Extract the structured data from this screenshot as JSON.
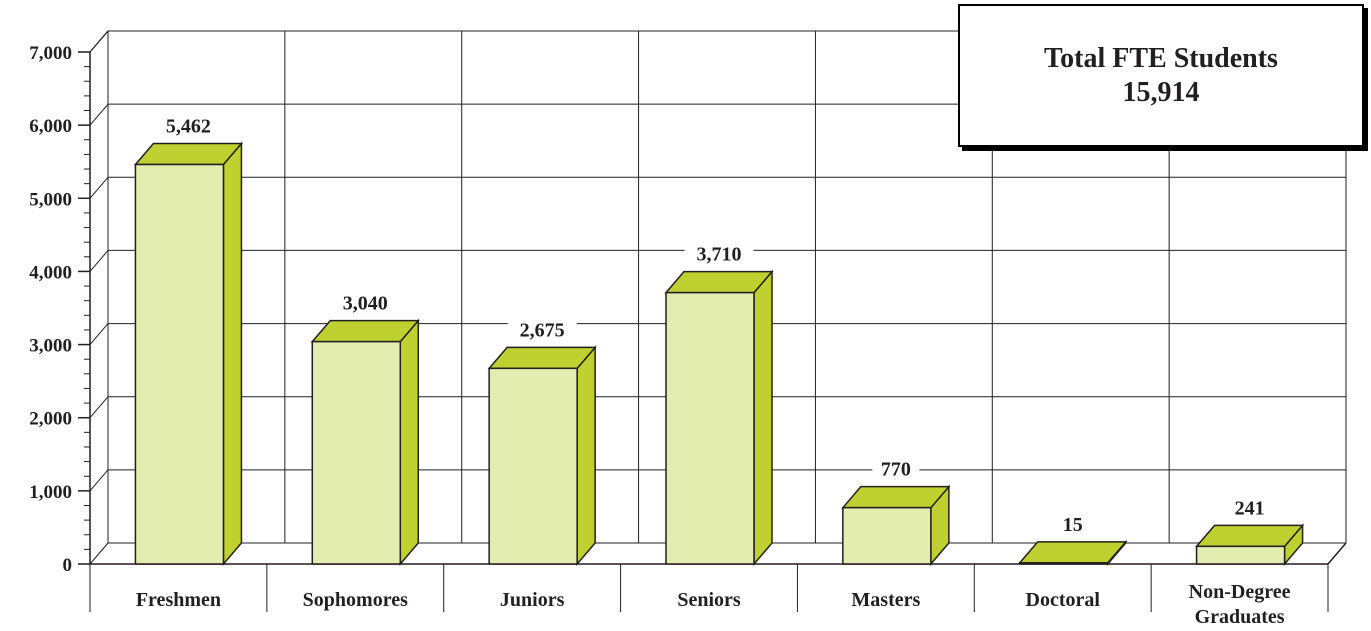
{
  "chart_data": {
    "type": "bar",
    "categories": [
      "Freshmen",
      "Sophomores",
      "Juniors",
      "Seniors",
      "Masters",
      "Doctoral",
      "Non-Degree|Graduates"
    ],
    "values": [
      5462,
      3040,
      2675,
      3710,
      770,
      15,
      241
    ],
    "value_labels": [
      "5,462",
      "3,040",
      "2,675",
      "3,710",
      "770",
      "15",
      "241"
    ],
    "y_ticks": [
      "0",
      "1,000",
      "2,000",
      "3,000",
      "4,000",
      "5,000",
      "6,000",
      "7,000"
    ],
    "ylim": [
      0,
      7000
    ],
    "grid": true,
    "three_d": true,
    "colors": {
      "bar_front": "#e3edb0",
      "bar_side": "#bfd130",
      "bar_top": "#bfd130",
      "grid": "#231f20"
    }
  },
  "annotation": {
    "title_line1": "Total FTE Students",
    "title_line2": "15,914"
  }
}
